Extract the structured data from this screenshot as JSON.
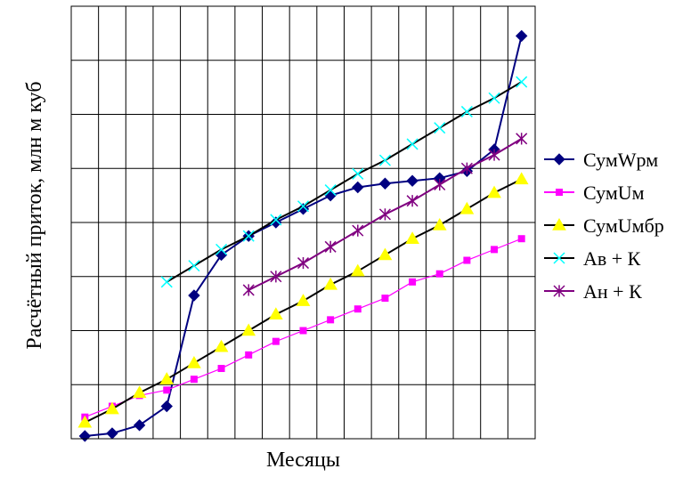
{
  "chart_data": {
    "type": "line",
    "title": "",
    "xlabel": "Месяцы",
    "ylabel": "Расчётный приток, млн м куб",
    "x": [
      1,
      2,
      3,
      4,
      5,
      6,
      7,
      8,
      9,
      10,
      11,
      12,
      13,
      14,
      15,
      16,
      17
    ],
    "xlim": [
      0.5,
      17.5
    ],
    "ylim": [
      0,
      8
    ],
    "grid": true,
    "tick_labels_visible": false,
    "legend_position": "right",
    "series": [
      {
        "name": "СумWрм",
        "color": "#000080",
        "marker": "diamond",
        "values": [
          0.05,
          0.1,
          0.25,
          0.6,
          2.65,
          3.4,
          3.75,
          4.0,
          4.25,
          4.5,
          4.65,
          4.72,
          4.77,
          4.82,
          4.95,
          5.35,
          7.45
        ]
      },
      {
        "name": "СумUм",
        "color": "#ff00ff",
        "marker": "square",
        "values": [
          0.4,
          0.6,
          0.8,
          0.9,
          1.1,
          1.3,
          1.55,
          1.8,
          2.0,
          2.2,
          2.4,
          2.6,
          2.9,
          3.05,
          3.3,
          3.5,
          3.7
        ]
      },
      {
        "name": "СумUмбр",
        "color": "#ffff00",
        "marker": "triangle",
        "values": [
          0.3,
          0.55,
          0.85,
          1.1,
          1.4,
          1.7,
          2.0,
          2.3,
          2.55,
          2.85,
          3.1,
          3.4,
          3.7,
          3.95,
          4.25,
          4.55,
          4.8
        ]
      },
      {
        "name": "Ав + К",
        "color": "#00ffff",
        "marker": "x",
        "values": [
          null,
          null,
          null,
          2.9,
          3.2,
          3.5,
          3.75,
          4.05,
          4.3,
          4.6,
          4.9,
          5.15,
          5.45,
          5.75,
          6.05,
          6.3,
          6.6
        ]
      },
      {
        "name": "Ан + К",
        "color": "#800080",
        "marker": "star",
        "values": [
          null,
          null,
          null,
          null,
          null,
          null,
          2.75,
          3.0,
          3.25,
          3.55,
          3.85,
          4.15,
          4.4,
          4.7,
          5.0,
          5.25,
          5.55
        ]
      }
    ]
  }
}
